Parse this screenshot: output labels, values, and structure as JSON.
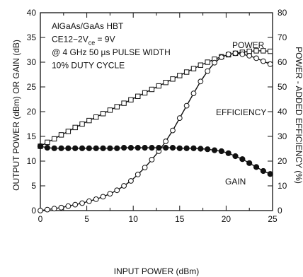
{
  "chart_data": {
    "type": "line",
    "xlabel": "INPUT POWER (dBm)",
    "ylabel": "OUTPUT POWER (dBm) OR GAIN (dB)",
    "y2label": "POWER - ADDED EFFICIENCY (%)",
    "xlim": [
      0,
      25
    ],
    "ylim": [
      0,
      40
    ],
    "y2lim": [
      0,
      80
    ],
    "x_ticks": [
      0,
      5,
      10,
      15,
      20,
      25
    ],
    "y_ticks": [
      0,
      5,
      10,
      15,
      20,
      25,
      30,
      35,
      40
    ],
    "y2_ticks": [
      0,
      10,
      20,
      30,
      40,
      50,
      60,
      70,
      80
    ],
    "grid": false,
    "annotation_lines": [
      {
        "base": "AlGaAs/GaAs HBT"
      },
      {
        "base": "CE12−2V",
        "sub": "ce",
        "tail": " = 9V"
      },
      {
        "base": "@ 4 GHz 50 µs PULSE WIDTH"
      },
      {
        "base": "10% DUTY CYCLE"
      }
    ],
    "series": [
      {
        "name": "POWER",
        "axis": "left",
        "marker": "open-square",
        "x": [
          0,
          0.75,
          1.5,
          2.25,
          3,
          3.75,
          4.5,
          5.25,
          6,
          6.75,
          7.5,
          8.25,
          9,
          9.75,
          10.5,
          11.25,
          12,
          12.75,
          13.5,
          14.25,
          15,
          15.75,
          16.5,
          17.25,
          18,
          18.75,
          19.5,
          20.25,
          21,
          21.75,
          22.5,
          23.25,
          24,
          24.75
        ],
        "y": [
          13.0,
          13.8,
          14.5,
          15.3,
          16.0,
          16.8,
          17.5,
          18.2,
          18.9,
          19.6,
          20.3,
          21.0,
          21.7,
          22.4,
          23.1,
          23.8,
          24.5,
          25.2,
          25.9,
          26.6,
          27.3,
          28.0,
          28.7,
          29.4,
          30.0,
          30.6,
          31.1,
          31.5,
          31.8,
          32.0,
          32.2,
          32.3,
          32.3,
          32.2
        ]
      },
      {
        "name": "EFFICIENCY",
        "axis": "right",
        "marker": "open-circle",
        "x": [
          0,
          0.75,
          1.5,
          2.25,
          3,
          3.75,
          4.5,
          5.25,
          6,
          6.75,
          7.5,
          8.25,
          9,
          9.75,
          10.5,
          11.25,
          12,
          12.75,
          13.5,
          14.25,
          15,
          15.75,
          16.5,
          17.25,
          18,
          18.75,
          19.5,
          20.25,
          21,
          21.75,
          22.5,
          23.25,
          24,
          24.75
        ],
        "y": [
          0.0,
          0.4,
          0.8,
          1.2,
          1.8,
          2.4,
          3.0,
          3.8,
          4.6,
          5.6,
          6.8,
          8.2,
          10.0,
          12.0,
          14.6,
          17.4,
          20.6,
          24.0,
          28.0,
          32.4,
          37.4,
          42.4,
          47.4,
          52.2,
          56.4,
          59.8,
          62.0,
          63.2,
          63.6,
          63.2,
          62.6,
          61.6,
          60.4,
          59.2
        ]
      },
      {
        "name": "GAIN",
        "axis": "left",
        "marker": "filled-circle",
        "x": [
          0,
          0.75,
          1.5,
          2.25,
          3,
          3.75,
          4.5,
          5.25,
          6,
          6.75,
          7.5,
          8.25,
          9,
          9.75,
          10.5,
          11.25,
          12,
          12.75,
          13.5,
          14.25,
          15,
          15.75,
          16.5,
          17.25,
          18,
          18.75,
          19.5,
          20.25,
          21,
          21.75,
          22.5,
          23.25,
          24,
          24.75
        ],
        "y": [
          13.0,
          12.7,
          12.6,
          12.6,
          12.6,
          12.6,
          12.6,
          12.6,
          12.6,
          12.6,
          12.6,
          12.6,
          12.7,
          12.7,
          12.7,
          12.7,
          12.7,
          12.7,
          12.7,
          12.7,
          12.6,
          12.6,
          12.6,
          12.5,
          12.4,
          12.2,
          12.0,
          11.6,
          11.0,
          10.4,
          9.6,
          8.8,
          8.0,
          7.4
        ]
      }
    ]
  }
}
